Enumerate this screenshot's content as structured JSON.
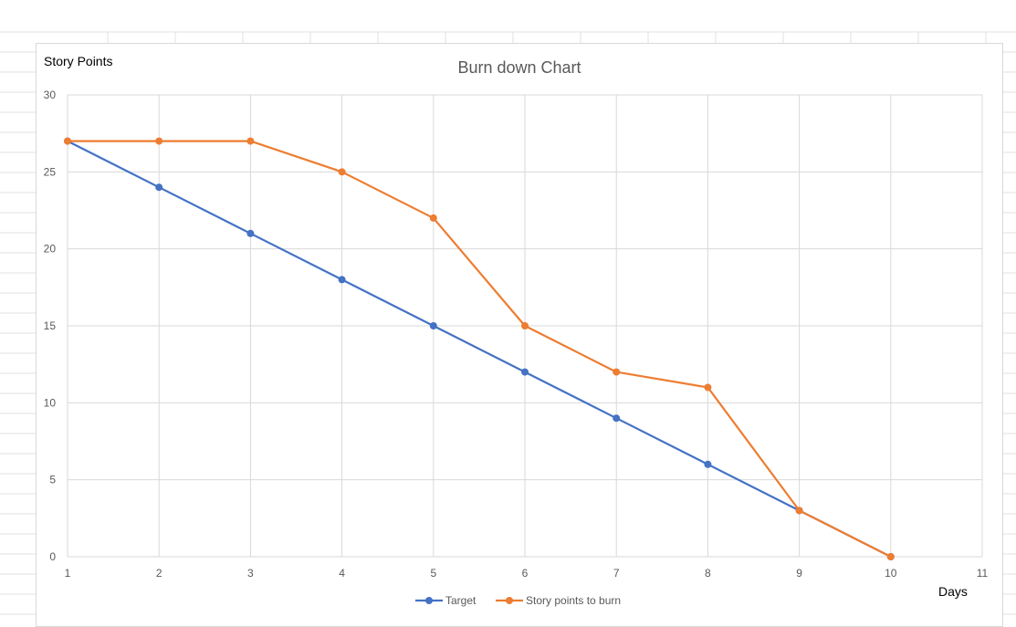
{
  "colors": {
    "target": "#4472c4",
    "story": "#ed7d31",
    "grid": "#d9d9d9",
    "sheet_grid": "#e1e1e1"
  },
  "chart_data": {
    "type": "line",
    "title": "Burn down Chart",
    "ylabel": "Story Points",
    "xlabel": "Days",
    "x": [
      1,
      2,
      3,
      4,
      5,
      6,
      7,
      8,
      9,
      10
    ],
    "xlim": [
      1,
      11
    ],
    "ylim": [
      0,
      30
    ],
    "x_ticks": [
      "1",
      "2",
      "3",
      "4",
      "5",
      "6",
      "7",
      "8",
      "9",
      "10",
      "11"
    ],
    "y_ticks": [
      "0",
      "5",
      "10",
      "15",
      "20",
      "25",
      "30"
    ],
    "grid": true,
    "legend_position": "bottom",
    "series": [
      {
        "name": "Target",
        "values": [
          27,
          24,
          21,
          18,
          15,
          12,
          9,
          6,
          3,
          0
        ]
      },
      {
        "name": "Story points to burn",
        "values": [
          27,
          27,
          27,
          25,
          22,
          15,
          12,
          11,
          3,
          0
        ]
      }
    ]
  }
}
